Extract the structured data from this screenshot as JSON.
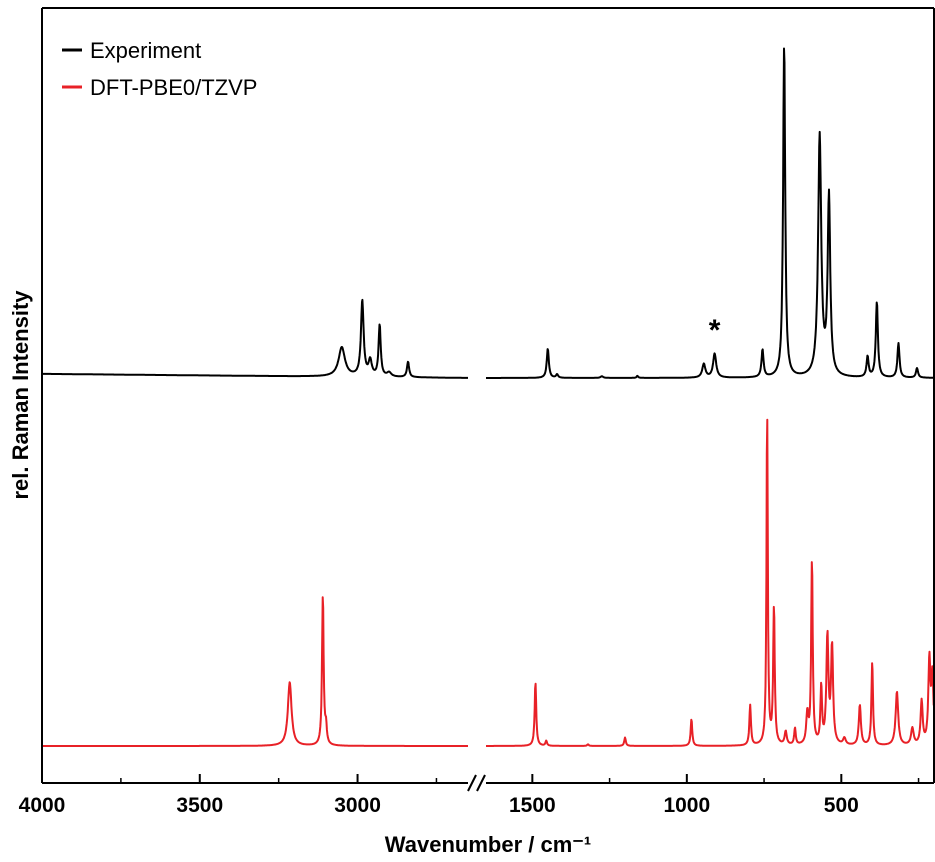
{
  "chart_data": {
    "type": "line",
    "xlabel": "Wavenumber / cm⁻¹",
    "ylabel": "rel. Raman Intensity",
    "x_axis": {
      "reversed": true,
      "broken": true,
      "segments": [
        {
          "from": 4000,
          "to": 2650
        },
        {
          "from": 1650,
          "to": 200
        }
      ],
      "ticks": [
        4000,
        3500,
        3000,
        1500,
        1000,
        500
      ],
      "tick_labels": [
        "4000",
        "3500",
        "3000",
        "1500",
        "1000",
        "500"
      ]
    },
    "yaxis_ticks": false,
    "grid": false,
    "legend": {
      "placement": "top-left"
    },
    "annotations": [
      {
        "text": "*",
        "x": 910
      }
    ],
    "series": [
      {
        "name": "Experiment",
        "color": "#000000",
        "offset": 1.0,
        "baseline": 0.04,
        "peaks": [
          {
            "x": 3050,
            "height": 0.085,
            "width": 12
          },
          {
            "x": 2985,
            "height": 0.22,
            "width": 5
          },
          {
            "x": 2960,
            "height": 0.045,
            "width": 6
          },
          {
            "x": 2930,
            "height": 0.15,
            "width": 4
          },
          {
            "x": 2900,
            "height": 0.012,
            "width": 8
          },
          {
            "x": 2840,
            "height": 0.045,
            "width": 4
          },
          {
            "x": 1450,
            "height": 0.085,
            "width": 4
          },
          {
            "x": 1420,
            "height": 0.01,
            "width": 4
          },
          {
            "x": 1275,
            "height": 0.005,
            "width": 5
          },
          {
            "x": 1160,
            "height": 0.006,
            "width": 3
          },
          {
            "x": 945,
            "height": 0.04,
            "width": 6
          },
          {
            "x": 910,
            "height": 0.07,
            "width": 6
          },
          {
            "x": 755,
            "height": 0.08,
            "width": 4
          },
          {
            "x": 685,
            "height": 0.97,
            "width": 4
          },
          {
            "x": 570,
            "height": 0.7,
            "width": 6
          },
          {
            "x": 540,
            "height": 0.52,
            "width": 5
          },
          {
            "x": 415,
            "height": 0.06,
            "width": 4
          },
          {
            "x": 385,
            "height": 0.22,
            "width": 4
          },
          {
            "x": 315,
            "height": 0.1,
            "width": 4
          },
          {
            "x": 255,
            "height": 0.028,
            "width": 4
          }
        ]
      },
      {
        "name": "DFT-PBE0/TZVP",
        "color": "#e82127",
        "offset": 0.0,
        "baseline": 0.0,
        "peaks": [
          {
            "x": 3215,
            "height": 0.19,
            "width": 7
          },
          {
            "x": 3110,
            "height": 0.45,
            "width": 3
          },
          {
            "x": 3100,
            "height": 0.05,
            "width": 3
          },
          {
            "x": 1490,
            "height": 0.19,
            "width": 3
          },
          {
            "x": 1455,
            "height": 0.015,
            "width": 3
          },
          {
            "x": 1320,
            "height": 0.005,
            "width": 3
          },
          {
            "x": 1200,
            "height": 0.025,
            "width": 3
          },
          {
            "x": 985,
            "height": 0.08,
            "width": 3
          },
          {
            "x": 795,
            "height": 0.12,
            "width": 3
          },
          {
            "x": 740,
            "height": 1.0,
            "width": 2.5
          },
          {
            "x": 718,
            "height": 0.41,
            "width": 3
          },
          {
            "x": 680,
            "height": 0.04,
            "width": 4
          },
          {
            "x": 650,
            "height": 0.05,
            "width": 3
          },
          {
            "x": 610,
            "height": 0.09,
            "width": 4
          },
          {
            "x": 595,
            "height": 0.55,
            "width": 3
          },
          {
            "x": 565,
            "height": 0.17,
            "width": 3
          },
          {
            "x": 545,
            "height": 0.32,
            "width": 4
          },
          {
            "x": 530,
            "height": 0.29,
            "width": 4
          },
          {
            "x": 490,
            "height": 0.02,
            "width": 5
          },
          {
            "x": 440,
            "height": 0.12,
            "width": 4
          },
          {
            "x": 400,
            "height": 0.25,
            "width": 3
          },
          {
            "x": 320,
            "height": 0.16,
            "width": 5
          },
          {
            "x": 270,
            "height": 0.05,
            "width": 5
          },
          {
            "x": 240,
            "height": 0.13,
            "width": 4
          },
          {
            "x": 215,
            "height": 0.25,
            "width": 4
          },
          {
            "x": 205,
            "height": 0.2,
            "width": 4
          }
        ]
      }
    ]
  }
}
